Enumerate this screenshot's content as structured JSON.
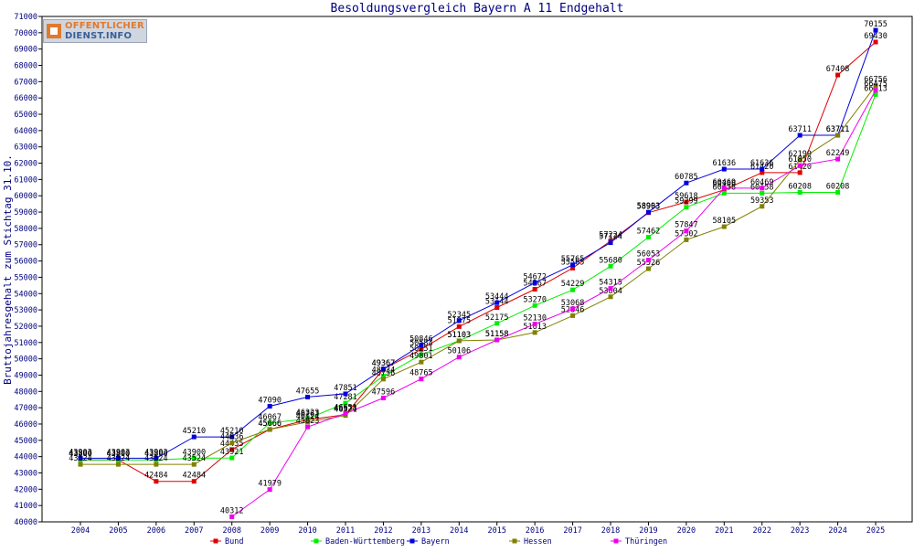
{
  "logo": {
    "line1": "OFFENTLICHER",
    "line2": "DIENST.INFO"
  },
  "chart_data": {
    "type": "line",
    "title": "Besoldungsvergleich Bayern A 11 Endgehalt",
    "xlabel": "",
    "ylabel": "Bruttojahresgehalt zum Stichtag 31.10.",
    "ylim": [
      40000,
      71000
    ],
    "ytick_step": 1000,
    "grid": false,
    "legend_position": "bottom",
    "x": [
      "2004",
      "2005",
      "2006",
      "2007",
      "2008",
      "2009",
      "2010",
      "2011",
      "2012",
      "2013",
      "2014",
      "2015",
      "2016",
      "2017",
      "2018",
      "2019",
      "2020",
      "2021",
      "2022",
      "2023",
      "2024",
      "2025"
    ],
    "series": [
      {
        "name": "Bund",
        "color": "#dd0000",
        "values": [
          43800,
          43800,
          42484,
          42484,
          44435,
          45666,
          46263,
          46578,
          49367,
          50584,
          51975,
          53144,
          54267,
          55565,
          57224,
          58963,
          59618,
          60366,
          61420,
          61420,
          67408,
          69430
        ]
      },
      {
        "name": "Baden-Württemberg",
        "color": "#00ee00",
        "values": [
          43800,
          43800,
          43800,
          43900,
          43921,
          46067,
          46323,
          47281,
          48934,
          50251,
          51103,
          52175,
          53270,
          54229,
          55680,
          57462,
          59299,
          60158,
          60158,
          60208,
          60208,
          66213
        ]
      },
      {
        "name": "Bayern",
        "color": "#0000dd",
        "values": [
          43903,
          43903,
          43903,
          45210,
          45210,
          47090,
          47655,
          47851,
          49367,
          50846,
          52345,
          53444,
          54672,
          55765,
          57124,
          58993,
          60785,
          61636,
          61636,
          63711,
          63711,
          70155
        ]
      },
      {
        "name": "Hessen",
        "color": "#808000",
        "values": [
          43524,
          43524,
          43524,
          43524,
          44836,
          45666,
          46124,
          46521,
          48756,
          49801,
          51103,
          51158,
          51613,
          52646,
          53804,
          55526,
          57302,
          58105,
          59353,
          62199,
          63711,
          66756
        ]
      },
      {
        "name": "Thüringen",
        "color": "#ee00ee",
        "values": [
          null,
          null,
          null,
          null,
          40312,
          41979,
          45823,
          46651,
          47596,
          48765,
          50106,
          51158,
          52130,
          53068,
          54315,
          56053,
          57847,
          60469,
          60469,
          61850,
          62249,
          66475
        ]
      }
    ]
  }
}
